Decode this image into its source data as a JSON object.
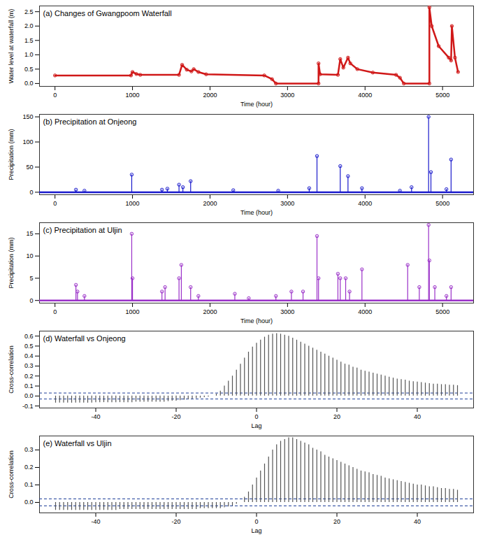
{
  "chart_data": [
    {
      "type": "line",
      "title": "(a) Changes of Gwangpoom Waterfall",
      "x_label": "Time (hour)",
      "y_label": "Water level at waterfall (m)",
      "x": [
        0,
        980,
        1000,
        1050,
        1100,
        1600,
        1640,
        1700,
        1760,
        1790,
        1850,
        1950,
        2700,
        2800,
        2850,
        3400,
        3400,
        3420,
        3650,
        3680,
        3720,
        3780,
        3810,
        3900,
        4100,
        4400,
        4450,
        4500,
        4830,
        4830,
        4860,
        4950,
        5080,
        5110,
        5120,
        5160,
        5200
      ],
      "values": [
        0.28,
        0.28,
        0.4,
        0.33,
        0.3,
        0.3,
        0.65,
        0.48,
        0.42,
        0.5,
        0.4,
        0.32,
        0.28,
        0.15,
        0.0,
        0.0,
        0.7,
        0.32,
        0.3,
        0.85,
        0.55,
        0.9,
        0.7,
        0.5,
        0.38,
        0.3,
        0.2,
        0.0,
        0.0,
        2.65,
        2.0,
        1.3,
        0.9,
        0.8,
        2.0,
        0.9,
        0.4
      ],
      "color": "#d01818",
      "marker": "circle",
      "xlim": [
        -200,
        5400
      ],
      "xticks": [
        0,
        1000,
        2000,
        3000,
        4000,
        5000
      ],
      "ylim": [
        -0.1,
        2.7
      ],
      "yticks": [
        {
          "value": 0,
          "label": "0.0"
        },
        0.5,
        {
          "value": 1,
          "label": "1.0"
        },
        1.5,
        {
          "value": 2,
          "label": "2.0"
        },
        2.5
      ]
    },
    {
      "type": "stem",
      "title": "(b) Precipitation at Onjeong",
      "x_label": "Time (hour)",
      "y_label": "Precipitation (mm)",
      "x": [
        270,
        380,
        990,
        1380,
        1450,
        1600,
        1650,
        1750,
        2300,
        2880,
        3280,
        3380,
        3680,
        3780,
        3960,
        4450,
        4600,
        4820,
        4850,
        5050,
        5110
      ],
      "values": [
        5,
        3,
        35,
        5,
        7,
        15,
        10,
        22,
        4,
        3,
        8,
        72,
        52,
        32,
        8,
        3,
        10,
        150,
        40,
        6,
        65
      ],
      "color": "#1a1acc",
      "marker": "circle",
      "xlim": [
        -200,
        5400
      ],
      "xticks": [
        0,
        1000,
        2000,
        3000,
        4000,
        5000
      ],
      "ylim": [
        -5,
        155
      ],
      "yticks": [
        0,
        50,
        100,
        150
      ]
    },
    {
      "type": "stem",
      "title": "(c) Precipitation at Uljin",
      "x_label": "Time (hour)",
      "y_label": "Precipitation (mm)",
      "x": [
        270,
        290,
        380,
        990,
        1000,
        1380,
        1420,
        1600,
        1630,
        1750,
        1850,
        2320,
        2500,
        2850,
        3050,
        3200,
        3380,
        3400,
        3650,
        3680,
        3750,
        3800,
        3960,
        4550,
        4700,
        4820,
        4830,
        4900,
        5050,
        5110
      ],
      "values": [
        3.5,
        2,
        1,
        15,
        5,
        2,
        3,
        5,
        8,
        3,
        1,
        1.5,
        0.5,
        1,
        2,
        2,
        14.5,
        5,
        6,
        5,
        5,
        2,
        7,
        8,
        3,
        17,
        9,
        3,
        1,
        3
      ],
      "color": "#9a30c8",
      "marker": "circle",
      "xlim": [
        -200,
        5400
      ],
      "xticks": [
        0,
        1000,
        2000,
        3000,
        4000,
        5000
      ],
      "ylim": [
        -0.6,
        17.5
      ],
      "yticks": [
        0,
        5,
        10,
        15
      ]
    },
    {
      "type": "stem",
      "title": "(d) Waterfall vs Onjeong",
      "x_label": "Lag",
      "y_label": "Cross-correlation",
      "x": [
        -50,
        -49,
        -48,
        -47,
        -46,
        -45,
        -44,
        -43,
        -42,
        -41,
        -40,
        -39,
        -38,
        -37,
        -36,
        -35,
        -34,
        -33,
        -32,
        -31,
        -30,
        -29,
        -28,
        -27,
        -26,
        -25,
        -24,
        -23,
        -22,
        -21,
        -20,
        -19,
        -18,
        -17,
        -16,
        -15,
        -14,
        -13,
        -12,
        -11,
        -10,
        -9,
        -8,
        -7,
        -6,
        -5,
        -4,
        -3,
        -2,
        -1,
        0,
        1,
        2,
        3,
        4,
        5,
        6,
        7,
        8,
        9,
        10,
        11,
        12,
        13,
        14,
        15,
        16,
        17,
        18,
        19,
        20,
        21,
        22,
        23,
        24,
        25,
        26,
        27,
        28,
        29,
        30,
        31,
        32,
        33,
        34,
        35,
        36,
        37,
        38,
        39,
        40,
        41,
        42,
        43,
        44,
        45,
        46,
        47,
        48,
        49,
        50
      ],
      "values": [
        -0.07,
        -0.07,
        -0.07,
        -0.07,
        -0.07,
        -0.07,
        -0.07,
        -0.07,
        -0.07,
        -0.07,
        -0.065,
        -0.065,
        -0.065,
        -0.065,
        -0.065,
        -0.065,
        -0.065,
        -0.065,
        -0.065,
        -0.065,
        -0.06,
        -0.06,
        -0.06,
        -0.06,
        -0.06,
        -0.06,
        -0.06,
        -0.06,
        -0.055,
        -0.05,
        -0.05,
        -0.045,
        -0.04,
        -0.035,
        -0.03,
        -0.025,
        -0.02,
        -0.015,
        -0.01,
        0.0,
        0.02,
        0.05,
        0.1,
        0.15,
        0.2,
        0.26,
        0.32,
        0.38,
        0.44,
        0.49,
        0.53,
        0.56,
        0.59,
        0.61,
        0.62,
        0.625,
        0.62,
        0.61,
        0.6,
        0.58,
        0.56,
        0.54,
        0.52,
        0.5,
        0.48,
        0.46,
        0.44,
        0.42,
        0.4,
        0.38,
        0.36,
        0.34,
        0.32,
        0.31,
        0.29,
        0.28,
        0.26,
        0.25,
        0.24,
        0.23,
        0.22,
        0.21,
        0.2,
        0.19,
        0.18,
        0.17,
        0.165,
        0.16,
        0.15,
        0.145,
        0.14,
        0.135,
        0.13,
        0.125,
        0.12,
        0.12,
        0.115,
        0.115,
        0.11,
        0.11,
        0.105
      ],
      "color": "#555555",
      "bounds": {
        "values": [
          -0.03,
          0.03
        ],
        "color": "#1f3f99",
        "line_style": "dashed"
      },
      "xlim": [
        -54,
        54
      ],
      "xticks": [
        -40,
        -20,
        0,
        20,
        40
      ],
      "ylim": [
        -0.12,
        0.65
      ],
      "yticks": [
        -0.1,
        {
          "value": 0,
          "label": "0.0"
        },
        0.1,
        0.2,
        0.3,
        0.4,
        0.5,
        0.6
      ]
    },
    {
      "type": "stem",
      "title": "(e) Waterfall vs Uljin",
      "x_label": "Lag",
      "y_label": "Cross-correlation",
      "x": [
        -50,
        -49,
        -48,
        -47,
        -46,
        -45,
        -44,
        -43,
        -42,
        -41,
        -40,
        -39,
        -38,
        -37,
        -36,
        -35,
        -34,
        -33,
        -32,
        -31,
        -30,
        -29,
        -28,
        -27,
        -26,
        -25,
        -24,
        -23,
        -22,
        -21,
        -20,
        -19,
        -18,
        -17,
        -16,
        -15,
        -14,
        -13,
        -12,
        -11,
        -10,
        -9,
        -8,
        -7,
        -6,
        -5,
        -4,
        -3,
        -2,
        -1,
        0,
        1,
        2,
        3,
        4,
        5,
        6,
        7,
        8,
        9,
        10,
        11,
        12,
        13,
        14,
        15,
        16,
        17,
        18,
        19,
        20,
        21,
        22,
        23,
        24,
        25,
        26,
        27,
        28,
        29,
        30,
        31,
        32,
        33,
        34,
        35,
        36,
        37,
        38,
        39,
        40,
        41,
        42,
        43,
        44,
        45,
        46,
        47,
        48,
        49,
        50
      ],
      "values": [
        -0.045,
        -0.045,
        -0.045,
        -0.045,
        -0.045,
        -0.045,
        -0.045,
        -0.045,
        -0.045,
        -0.045,
        -0.045,
        -0.045,
        -0.045,
        -0.045,
        -0.045,
        -0.045,
        -0.04,
        -0.04,
        -0.04,
        -0.04,
        -0.04,
        -0.04,
        -0.04,
        -0.04,
        -0.04,
        -0.04,
        -0.04,
        -0.04,
        -0.04,
        -0.04,
        -0.04,
        -0.04,
        -0.04,
        -0.04,
        -0.04,
        -0.04,
        -0.035,
        -0.035,
        -0.035,
        -0.035,
        -0.035,
        -0.035,
        -0.03,
        -0.025,
        -0.02,
        -0.01,
        0.0,
        0.03,
        0.06,
        0.1,
        0.14,
        0.18,
        0.22,
        0.26,
        0.3,
        0.33,
        0.35,
        0.36,
        0.37,
        0.37,
        0.36,
        0.35,
        0.34,
        0.33,
        0.31,
        0.3,
        0.29,
        0.27,
        0.26,
        0.25,
        0.24,
        0.23,
        0.22,
        0.21,
        0.2,
        0.19,
        0.18,
        0.175,
        0.17,
        0.16,
        0.155,
        0.15,
        0.14,
        0.135,
        0.13,
        0.125,
        0.12,
        0.115,
        0.11,
        0.105,
        0.1,
        0.1,
        0.095,
        0.09,
        0.09,
        0.085,
        0.08,
        0.08,
        0.075,
        0.075,
        0.07
      ],
      "color": "#555555",
      "bounds": {
        "values": [
          -0.02,
          0.02
        ],
        "color": "#1f3f99",
        "line_style": "dashed"
      },
      "xlim": [
        -54,
        54
      ],
      "xticks": [
        -40,
        -20,
        0,
        20,
        40
      ],
      "ylim": [
        -0.06,
        0.38
      ],
      "yticks": [
        {
          "value": 0,
          "label": "0.0"
        },
        0.1,
        0.2,
        0.3
      ]
    }
  ]
}
